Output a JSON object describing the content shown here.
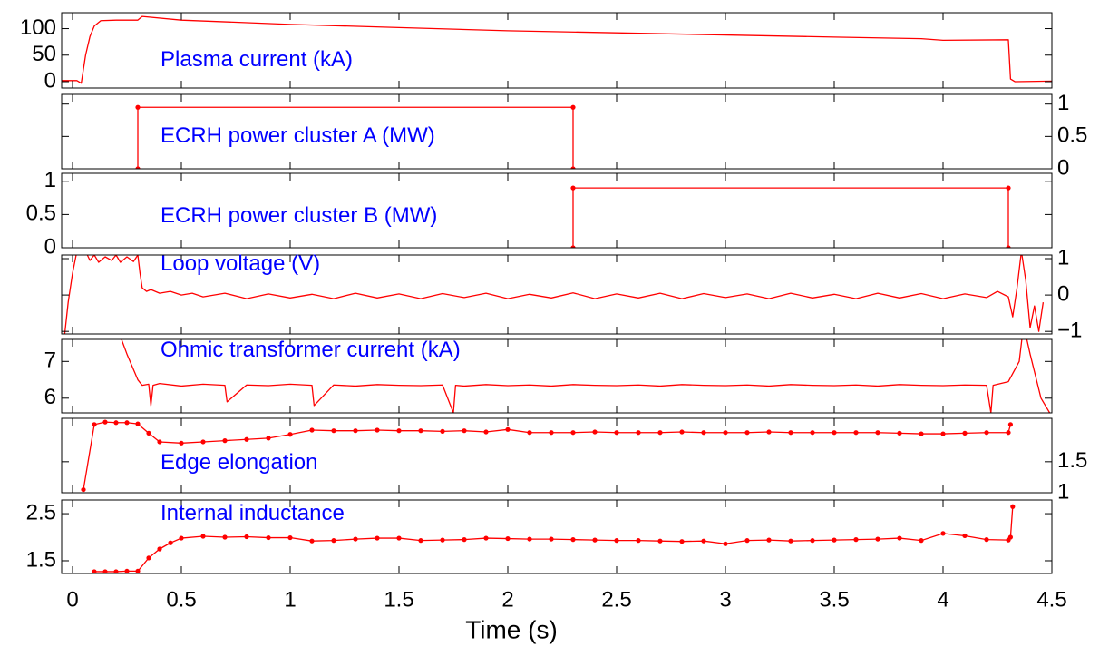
{
  "chart_data": [
    {
      "type": "line",
      "title": "Plasma current (kA)",
      "color": "#ff0000",
      "title_color": "#0000ff",
      "yaxis_side": "left",
      "markers": false,
      "xlim": [
        -0.05,
        4.5
      ],
      "xticks": [
        0,
        0.5,
        1,
        1.5,
        2,
        2.5,
        3,
        3.5,
        4,
        4.5
      ],
      "ylim": [
        -12,
        130
      ],
      "yticks": [
        0,
        50,
        100
      ],
      "x": [
        -0.05,
        0.02,
        0.04,
        0.06,
        0.08,
        0.1,
        0.13,
        0.2,
        0.3,
        0.32,
        0.5,
        1,
        1.5,
        2,
        2.5,
        3,
        3.5,
        3.9,
        4.0,
        4.3,
        4.31,
        4.33,
        4.5
      ],
      "values": [
        2,
        2,
        -3,
        50,
        85,
        105,
        115,
        116,
        116,
        123,
        116,
        108,
        102,
        96,
        92,
        88,
        84,
        81,
        78,
        79,
        5,
        0,
        1
      ]
    },
    {
      "type": "line",
      "title": "ECRH power cluster A (MW)",
      "color": "#ff0000",
      "title_color": "#0000ff",
      "yaxis_side": "right",
      "markers": true,
      "xlim": [
        -0.05,
        4.5
      ],
      "xticks": [
        0,
        0.5,
        1,
        1.5,
        2,
        2.5,
        3,
        3.5,
        4,
        4.5
      ],
      "ylim": [
        0,
        1.15
      ],
      "yticks": [
        0,
        0.5,
        1
      ],
      "x": [
        0.3,
        0.3,
        2.3,
        2.3
      ],
      "values": [
        0,
        0.95,
        0.95,
        0
      ]
    },
    {
      "type": "line",
      "title": "ECRH power cluster B (MW)",
      "color": "#ff0000",
      "title_color": "#0000ff",
      "yaxis_side": "left",
      "markers": true,
      "xlim": [
        -0.05,
        4.5
      ],
      "xticks": [
        0,
        0.5,
        1,
        1.5,
        2,
        2.5,
        3,
        3.5,
        4,
        4.5
      ],
      "ylim": [
        0,
        1.12
      ],
      "yticks": [
        0,
        0.5,
        1
      ],
      "x": [
        2.3,
        2.3,
        4.3,
        4.3
      ],
      "values": [
        0,
        0.9,
        0.9,
        0
      ]
    },
    {
      "type": "line",
      "title": "Loop voltage (V)",
      "color": "#ff0000",
      "title_color": "#0000ff",
      "yaxis_side": "right",
      "markers": false,
      "xlim": [
        -0.05,
        4.5
      ],
      "xticks": [
        0,
        0.5,
        1,
        1.5,
        2,
        2.5,
        3,
        3.5,
        4,
        4.5
      ],
      "ylim": [
        -1.07,
        1.1
      ],
      "yticks": [
        {
          "value": -1,
          "label": "−1"
        },
        0,
        1
      ],
      "x": [
        -0.04,
        -0.02,
        0,
        0.02,
        0.04,
        0.06,
        0.08,
        0.1,
        0.12,
        0.15,
        0.18,
        0.2,
        0.22,
        0.25,
        0.28,
        0.3,
        0.31,
        0.32,
        0.34,
        0.36,
        0.4,
        0.45,
        0.5,
        0.55,
        0.6,
        0.7,
        0.8,
        0.9,
        1.0,
        1.1,
        1.2,
        1.3,
        1.4,
        1.5,
        1.6,
        1.7,
        1.8,
        1.9,
        2.0,
        2.1,
        2.2,
        2.3,
        2.4,
        2.5,
        2.6,
        2.7,
        2.8,
        2.9,
        3.0,
        3.1,
        3.2,
        3.3,
        3.4,
        3.5,
        3.6,
        3.7,
        3.8,
        3.9,
        4.0,
        4.1,
        4.2,
        4.25,
        4.3,
        4.32,
        4.34,
        4.36,
        4.38,
        4.4,
        4.42,
        4.44,
        4.46
      ],
      "values": [
        -1.3,
        -0.2,
        0.6,
        1.2,
        1.3,
        1.2,
        0.95,
        1.1,
        0.9,
        1.05,
        0.95,
        1.1,
        0.9,
        1.05,
        0.92,
        1.1,
        0.6,
        0.2,
        0.1,
        0.15,
        0.05,
        0.1,
        0.0,
        0.05,
        -0.05,
        0.05,
        -0.1,
        0.03,
        -0.08,
        0.02,
        -0.1,
        0.05,
        -0.08,
        0.03,
        -0.1,
        0.04,
        -0.07,
        0.05,
        -0.1,
        0.02,
        -0.08,
        0.06,
        -0.1,
        0.03,
        -0.08,
        0.05,
        -0.1,
        0.04,
        -0.07,
        0.03,
        -0.1,
        0.05,
        -0.08,
        0.02,
        -0.1,
        0.05,
        -0.08,
        0.04,
        -0.1,
        0.03,
        -0.07,
        0.1,
        -0.05,
        -0.6,
        0.2,
        1.2,
        0.4,
        -0.9,
        -0.3,
        -1.0,
        -0.2
      ]
    },
    {
      "type": "line",
      "title": "Ohmic transformer current (kA)",
      "color": "#ff0000",
      "title_color": "#0000ff",
      "yaxis_side": "left",
      "markers": false,
      "xlim": [
        -0.05,
        4.5
      ],
      "xticks": [
        0,
        0.5,
        1,
        1.5,
        2,
        2.5,
        3,
        3.5,
        4,
        4.5
      ],
      "ylim": [
        5.6,
        7.6
      ],
      "yticks": [
        6,
        7
      ],
      "x": [
        0.2,
        0.25,
        0.3,
        0.32,
        0.35,
        0.36,
        0.37,
        0.4,
        0.5,
        0.6,
        0.7,
        0.71,
        0.8,
        0.9,
        1.0,
        1.1,
        1.11,
        1.2,
        1.3,
        1.4,
        1.5,
        1.6,
        1.7,
        1.75,
        1.76,
        1.8,
        1.9,
        2.0,
        2.1,
        2.2,
        2.3,
        2.4,
        2.5,
        2.6,
        2.7,
        2.8,
        2.9,
        3.0,
        3.1,
        3.2,
        3.3,
        3.4,
        3.5,
        3.6,
        3.7,
        3.8,
        3.9,
        4.0,
        4.1,
        4.2,
        4.22,
        4.23,
        4.3,
        4.35,
        4.37,
        4.4,
        4.45,
        4.5
      ],
      "values": [
        8.0,
        7.2,
        6.5,
        6.35,
        6.38,
        5.8,
        6.35,
        6.4,
        6.33,
        6.38,
        6.35,
        5.9,
        6.36,
        6.34,
        6.38,
        6.35,
        5.8,
        6.36,
        6.33,
        6.37,
        6.35,
        6.34,
        6.36,
        5.6,
        6.35,
        6.33,
        6.37,
        6.34,
        6.36,
        6.33,
        6.37,
        6.35,
        6.34,
        6.36,
        6.33,
        6.37,
        6.35,
        6.34,
        6.36,
        6.33,
        6.37,
        6.35,
        6.34,
        6.36,
        6.33,
        6.37,
        6.35,
        6.34,
        6.36,
        6.35,
        5.6,
        6.35,
        6.45,
        7.0,
        8.0,
        7.2,
        6.0,
        5.5
      ]
    },
    {
      "type": "line",
      "title": "Edge elongation",
      "color": "#ff0000",
      "title_color": "#0000ff",
      "yaxis_side": "right",
      "markers": true,
      "xlim": [
        -0.05,
        4.5
      ],
      "xticks": [
        0,
        0.5,
        1,
        1.5,
        2,
        2.5,
        3,
        3.5,
        4,
        4.5
      ],
      "ylim": [
        1,
        2.2
      ],
      "yticks": [
        1,
        1.5
      ],
      "x": [
        0.05,
        0.1,
        0.15,
        0.2,
        0.25,
        0.3,
        0.35,
        0.4,
        0.5,
        0.6,
        0.7,
        0.8,
        0.9,
        1.0,
        1.1,
        1.2,
        1.3,
        1.4,
        1.5,
        1.6,
        1.7,
        1.8,
        1.9,
        2.0,
        2.1,
        2.2,
        2.3,
        2.4,
        2.5,
        2.6,
        2.7,
        2.8,
        2.9,
        3.0,
        3.1,
        3.2,
        3.3,
        3.4,
        3.5,
        3.6,
        3.7,
        3.8,
        3.9,
        4.0,
        4.1,
        4.2,
        4.3,
        4.31
      ],
      "values": [
        1.05,
        2.1,
        2.14,
        2.13,
        2.13,
        2.11,
        1.96,
        1.82,
        1.8,
        1.82,
        1.84,
        1.86,
        1.88,
        1.94,
        2.01,
        2.0,
        2.0,
        2.01,
        2.0,
        2.0,
        1.99,
        2.0,
        1.98,
        2.02,
        1.97,
        1.97,
        1.97,
        1.98,
        1.97,
        1.97,
        1.97,
        1.98,
        1.97,
        1.97,
        1.97,
        1.98,
        1.97,
        1.97,
        1.97,
        1.97,
        1.97,
        1.96,
        1.95,
        1.95,
        1.96,
        1.97,
        1.97,
        2.1
      ]
    },
    {
      "type": "line",
      "title": "Internal inductance",
      "color": "#ff0000",
      "title_color": "#0000ff",
      "yaxis_side": "left",
      "markers": true,
      "xlim": [
        -0.05,
        4.5
      ],
      "xticks": [
        0,
        0.5,
        1,
        1.5,
        2,
        2.5,
        3,
        3.5,
        4,
        4.5
      ],
      "ylim": [
        1.23,
        2.79
      ],
      "yticks": [
        1.5,
        2.5
      ],
      "xlabel": "Time (s)",
      "x": [
        0.1,
        0.15,
        0.2,
        0.25,
        0.3,
        0.35,
        0.4,
        0.45,
        0.5,
        0.6,
        0.7,
        0.8,
        0.9,
        1.0,
        1.1,
        1.2,
        1.3,
        1.4,
        1.5,
        1.6,
        1.7,
        1.8,
        1.9,
        2.0,
        2.1,
        2.2,
        2.3,
        2.4,
        2.5,
        2.6,
        2.7,
        2.8,
        2.9,
        3.0,
        3.1,
        3.2,
        3.3,
        3.4,
        3.5,
        3.6,
        3.7,
        3.8,
        3.9,
        4.0,
        4.1,
        4.2,
        4.3,
        4.31,
        4.32
      ],
      "values": [
        1.27,
        1.27,
        1.27,
        1.28,
        1.28,
        1.56,
        1.75,
        1.88,
        1.98,
        2.02,
        2.0,
        2.01,
        1.99,
        1.99,
        1.92,
        1.93,
        1.96,
        1.98,
        1.98,
        1.93,
        1.94,
        1.95,
        1.98,
        1.97,
        1.96,
        1.96,
        1.95,
        1.94,
        1.93,
        1.93,
        1.92,
        1.91,
        1.92,
        1.86,
        1.93,
        1.94,
        1.92,
        1.93,
        1.94,
        1.95,
        1.96,
        1.98,
        1.93,
        2.08,
        2.03,
        1.95,
        1.94,
        2.0,
        2.65
      ]
    }
  ]
}
